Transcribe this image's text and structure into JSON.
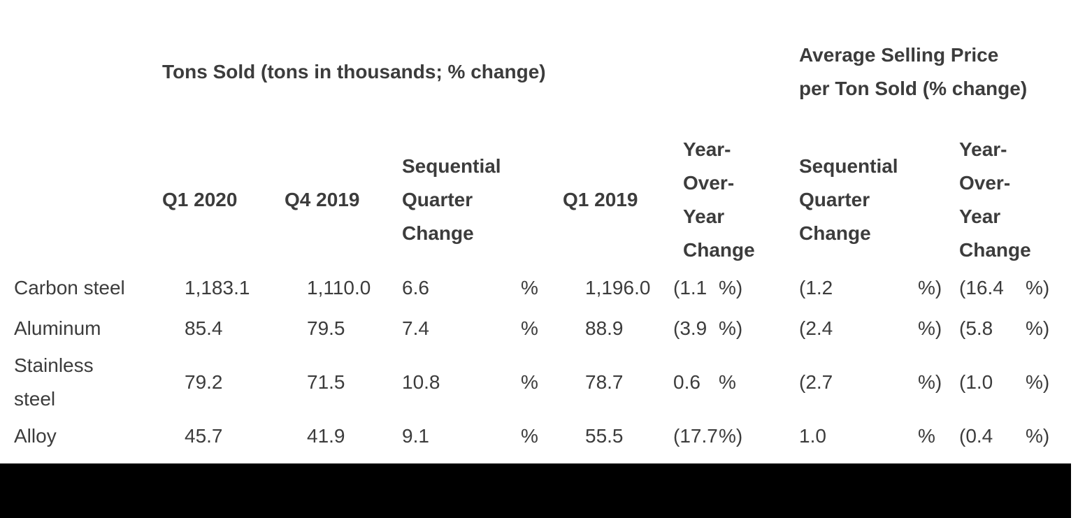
{
  "page": {
    "background_color": "#ffffff",
    "text_color": "#3c3c3c",
    "bottom_bar_color": "#000000"
  },
  "table": {
    "group_headers": {
      "tons": "Tons Sold (tons in thousands; % change)",
      "asp": "Average Selling Price per Ton Sold (% change)"
    },
    "column_headers": {
      "q1_2020": "Q1 2020",
      "q4_2019": "Q4 2019",
      "seq_change": "Sequential Quarter Change",
      "q1_2019": "Q1 2019",
      "yoy_change": "Year-Over-Year Change",
      "asp_seq_change": "Sequential Quarter Change",
      "asp_yoy_change": "Year-Over-Year Change"
    },
    "rows": [
      {
        "label": "Carbon steel",
        "q1_2020": "1,183.1",
        "q4_2019": "1,110.0",
        "seq_change": "6.6",
        "seq_change_unit": "%",
        "q1_2019": "1,196.0",
        "yoy_change": "(1.1",
        "yoy_change_unit": "%)",
        "asp_seq_change": "(1.2",
        "asp_seq_change_unit": "%)",
        "asp_yoy_change": "(16.4",
        "asp_yoy_change_unit": "%)"
      },
      {
        "label": "Aluminum",
        "q1_2020": "85.4",
        "q4_2019": "79.5",
        "seq_change": "7.4",
        "seq_change_unit": "%",
        "q1_2019": "88.9",
        "yoy_change": "(3.9",
        "yoy_change_unit": "%)",
        "asp_seq_change": "(2.4",
        "asp_seq_change_unit": "%)",
        "asp_yoy_change": "(5.8",
        "asp_yoy_change_unit": "%)"
      },
      {
        "label": "Stainless steel",
        "q1_2020": "79.2",
        "q4_2019": "71.5",
        "seq_change": "10.8",
        "seq_change_unit": "%",
        "q1_2019": "78.7",
        "yoy_change": "0.6",
        "yoy_change_unit": "%",
        "asp_seq_change": "(2.7",
        "asp_seq_change_unit": "%)",
        "asp_yoy_change": "(1.0",
        "asp_yoy_change_unit": "%)"
      },
      {
        "label": "Alloy",
        "q1_2020": "45.7",
        "q4_2019": "41.9",
        "seq_change": "9.1",
        "seq_change_unit": "%",
        "q1_2019": "55.5",
        "yoy_change": "(17.7",
        "yoy_change_unit": "%)",
        "asp_seq_change": "1.0",
        "asp_seq_change_unit": "%",
        "asp_yoy_change": "(0.4",
        "asp_yoy_change_unit": "%)"
      }
    ]
  }
}
